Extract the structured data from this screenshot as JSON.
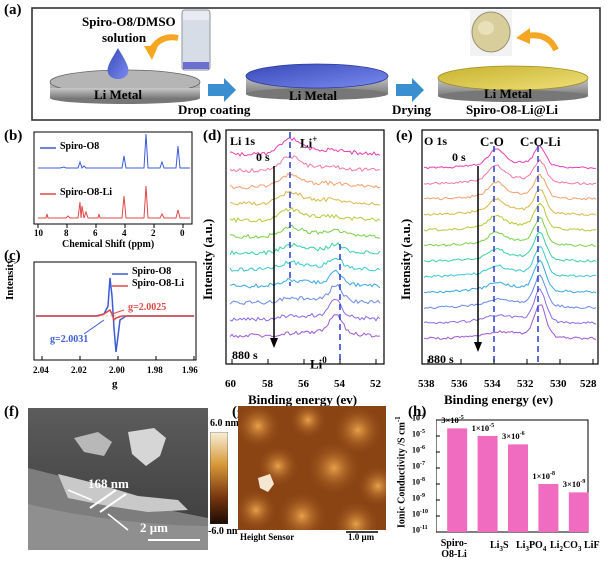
{
  "panels": {
    "a": "(a)",
    "b": "(b)",
    "c": "(c)",
    "d": "(d)",
    "e": "(e)",
    "f": "(f)",
    "g": "(g)",
    "h": "(h)"
  },
  "panel_a": {
    "solution_label_1": "Spiro-O8/DMSO",
    "solution_label_2": "solution",
    "disc1": "Li Metal",
    "disc2": "Li Metal",
    "disc3": "Li Metal",
    "step1": "Drop coating",
    "step2": "Drying",
    "product": "Spiro-O8-Li@Li",
    "colors": {
      "solution": "#3b3fb0",
      "coating": "#5a6ad6",
      "dried": "#d9c84a",
      "metal": "#9a9a9a",
      "arrow": "#3a8fd0",
      "curl_arrow": "#f5a623"
    }
  },
  "panel_b": {
    "legend1": "Spiro-O8",
    "legend2": "Spiro-O8-Li",
    "xlabel": "Chemical Shift (ppm)",
    "ticks": [
      "10",
      "8",
      "6",
      "4",
      "2",
      "0"
    ],
    "colors": {
      "s1": "#3b5bd6",
      "s2": "#e04848"
    }
  },
  "panel_c": {
    "ylabel": "Intensity",
    "xlabel": "g",
    "legend1": "Spiro-O8",
    "legend2": "Spiro-O8-Li",
    "ann1": "g=2.0025",
    "ann2": "g=2.0031",
    "ticks": [
      "2.04",
      "2.02",
      "2.00",
      "1.98",
      "1.96"
    ]
  },
  "panel_d": {
    "title": "Li 1s",
    "time_top": "0 s",
    "time_bottom": "880 s",
    "li_plus": "Li",
    "li_plus_sup": "+",
    "li_zero": "Li",
    "li_zero_sup": "0",
    "ylabel": "Intensity (a.u.)",
    "xlabel": "Binding energy (ev)",
    "ticks": [
      "60",
      "58",
      "56",
      "54",
      "52"
    ]
  },
  "panel_e": {
    "title": "O 1s",
    "time_top": "0 s",
    "time_bottom": "880 s",
    "peak1": "C-O",
    "peak2": "C-O-Li",
    "ylabel": "Intensity (a.u.)",
    "xlabel": "Binding energy (ev)",
    "ticks": [
      "538",
      "536",
      "534",
      "532",
      "530",
      "528"
    ]
  },
  "panel_f": {
    "thickness": "168 nm",
    "scale": "2 μm"
  },
  "panel_g": {
    "cb_top": "6.0 nm",
    "cb_bottom": "-6.0 nm",
    "sensor": "Height Sensor",
    "scale": "1.0 μm"
  },
  "panel_h": {
    "ylabel": "Ionic Conductivity /S cm",
    "ylabel_sup": "-1",
    "yticks": [
      "10",
      "10",
      "10",
      "10",
      "10",
      "10",
      "10",
      "10"
    ],
    "yticks_exp": [
      "-4",
      "-5",
      "-6",
      "-7",
      "-8",
      "-9",
      "-10",
      "-11"
    ],
    "bar_labels": [
      "3×10",
      "1×10",
      "3×10",
      "1×10",
      "3×10"
    ],
    "bar_label_exp": [
      "-5",
      "-5",
      "-6",
      "-8",
      "-9"
    ],
    "categories": [
      "Spiro-O8-Li",
      "Li3S",
      "Li3PO4",
      "Li2CO3",
      "LiF"
    ],
    "colors": {
      "bar": "#f06cc0"
    }
  },
  "chart_data": [
    {
      "type": "bar",
      "title": "",
      "ylabel": "Ionic Conductivity /S cm-1",
      "yscale": "log",
      "ylim": [
        1e-11,
        0.0001
      ],
      "categories": [
        "Spiro-O8-Li",
        "Li3S",
        "Li3PO4",
        "Li2CO3",
        "LiF"
      ],
      "values": [
        3e-05,
        1e-05,
        3e-06,
        1e-08,
        3e-09
      ]
    }
  ]
}
